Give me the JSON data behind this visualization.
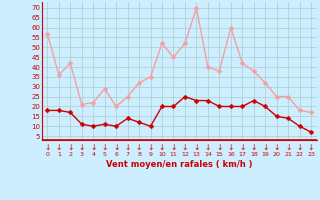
{
  "hours": [
    0,
    1,
    2,
    3,
    4,
    5,
    6,
    7,
    8,
    9,
    10,
    11,
    12,
    13,
    14,
    15,
    16,
    17,
    18,
    19,
    20,
    21,
    22,
    23
  ],
  "wind_avg": [
    18,
    18,
    17,
    11,
    10,
    11,
    10,
    14,
    12,
    10,
    20,
    20,
    25,
    23,
    23,
    20,
    20,
    20,
    23,
    20,
    15,
    14,
    10,
    7
  ],
  "wind_gust": [
    57,
    36,
    42,
    21,
    22,
    29,
    20,
    25,
    32,
    35,
    52,
    45,
    52,
    70,
    40,
    38,
    60,
    42,
    38,
    32,
    25,
    25,
    18,
    17
  ],
  "avg_color": "#cc0000",
  "gust_color": "#f4a0a0",
  "bg_color": "#cceeff",
  "grid_color": "#aacccc",
  "xlabel": "Vent moyen/en rafales ( km/h )",
  "xlabel_color": "#cc0000",
  "ylabel_ticks": [
    5,
    10,
    15,
    20,
    25,
    30,
    35,
    40,
    45,
    50,
    55,
    60,
    65,
    70
  ],
  "ylim": [
    3,
    73
  ],
  "xlim": [
    -0.5,
    23.5
  ],
  "markersize": 2.5,
  "linewidth": 1.0
}
